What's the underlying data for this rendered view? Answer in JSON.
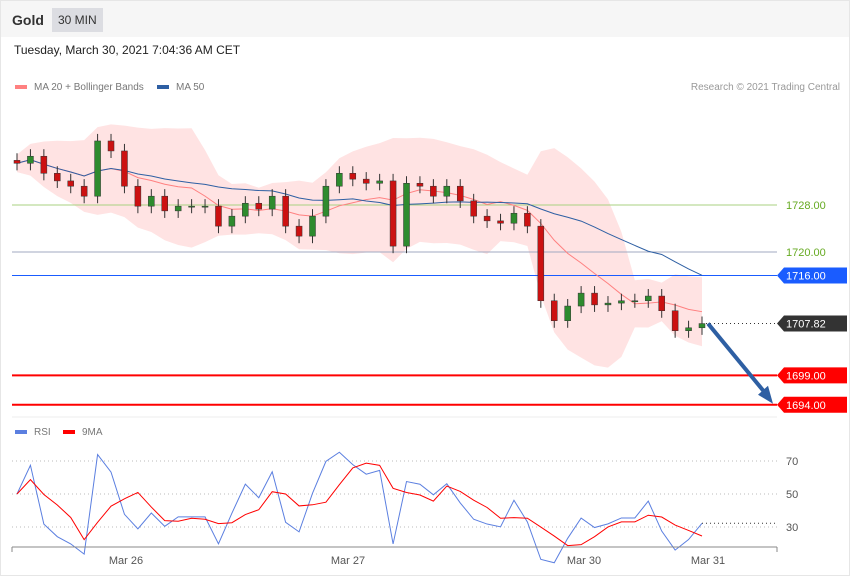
{
  "header": {
    "title": "Gold",
    "timeframe": "30 MIN",
    "datetime": "Tuesday, March 30, 2021 7:04:36 AM CET"
  },
  "legend": {
    "bb": "MA 20 + Bollinger Bands",
    "ma50": "MA 50",
    "rsi": "RSI",
    "ma9": "9MA",
    "credit": "Research © 2021 Trading Central"
  },
  "colors": {
    "bb": "#ff8080",
    "ma50": "#2e5fa3",
    "rsi": "#5b7fe0",
    "ma9": "#ff0000",
    "up": "#2e8b2e",
    "down": "#cc1111",
    "support": "#ff0000",
    "resistance_green": "#66aa22",
    "blue_level": "#1a5cff",
    "last": "#333333"
  },
  "chart_data": [
    {
      "type": "candlestick",
      "ylim": [
        1690,
        1746
      ],
      "x_ticks": [
        "Mar 26",
        "Mar 27",
        "Mar 30",
        "Mar 31"
      ],
      "closes": [
        1735.1,
        1736.3,
        1733.4,
        1732.1,
        1731.2,
        1729.5,
        1738.9,
        1737.2,
        1731.2,
        1727.8,
        1729.5,
        1727.0,
        1727.8,
        1727.8,
        1727.8,
        1724.4,
        1726.1,
        1728.3,
        1727.3,
        1729.5,
        1724.4,
        1722.7,
        1726.1,
        1731.2,
        1733.4,
        1732.4,
        1731.7,
        1732.1,
        1721.0,
        1731.7,
        1731.2,
        1729.5,
        1731.2,
        1728.7,
        1726.1,
        1725.3,
        1724.9,
        1726.6,
        1724.4,
        1711.7,
        1708.3,
        1710.8,
        1713.0,
        1711.0,
        1711.3,
        1711.7,
        1711.7,
        1712.5,
        1710.0,
        1706.6,
        1707.1,
        1707.82
      ],
      "levels": [
        {
          "label": "1728.00",
          "value": 1728,
          "kind": "resistance"
        },
        {
          "label": "1720.00",
          "value": 1720,
          "kind": "resistance"
        },
        {
          "label": "1716.00",
          "value": 1716,
          "kind": "ma50"
        },
        {
          "label": "1707.82",
          "value": 1707.82,
          "kind": "last"
        },
        {
          "label": "1699.00",
          "value": 1699,
          "kind": "support"
        },
        {
          "label": "1694.00",
          "value": 1694,
          "kind": "support"
        }
      ],
      "arrow_target": 1694
    },
    {
      "type": "line",
      "name": "RSI",
      "ylim": [
        15,
        85
      ],
      "y_ticks": [
        "70",
        "50",
        "30"
      ]
    }
  ]
}
